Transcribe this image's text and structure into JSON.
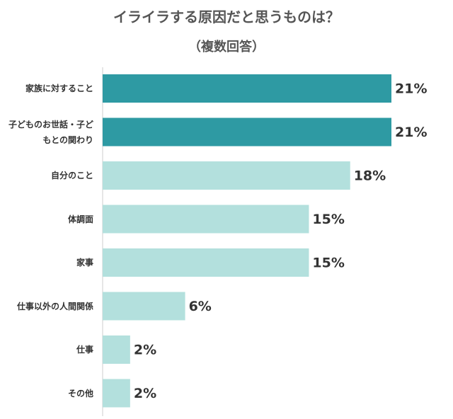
{
  "chart_data": {
    "type": "bar",
    "orientation": "horizontal",
    "title": "イライラする原因だと思うものは？",
    "subtitle": "（複数回答）",
    "categories": [
      "家族に対すること",
      "子どものお世話・子どもとの関わり",
      "自分のこと",
      "体調面",
      "家事",
      "仕事以外の人間関係",
      "仕事",
      "その他"
    ],
    "values": [
      21,
      21,
      18,
      15,
      15,
      6,
      2,
      2
    ],
    "value_labels": [
      "21%",
      "21%",
      "18%",
      "15%",
      "15%",
      "6%",
      "2%",
      "2%"
    ],
    "colors": [
      "#2e9aa3",
      "#2e9aa3",
      "#b3e0dd",
      "#b3e0dd",
      "#b3e0dd",
      "#b3e0dd",
      "#b3e0dd",
      "#b3e0dd"
    ]
  }
}
